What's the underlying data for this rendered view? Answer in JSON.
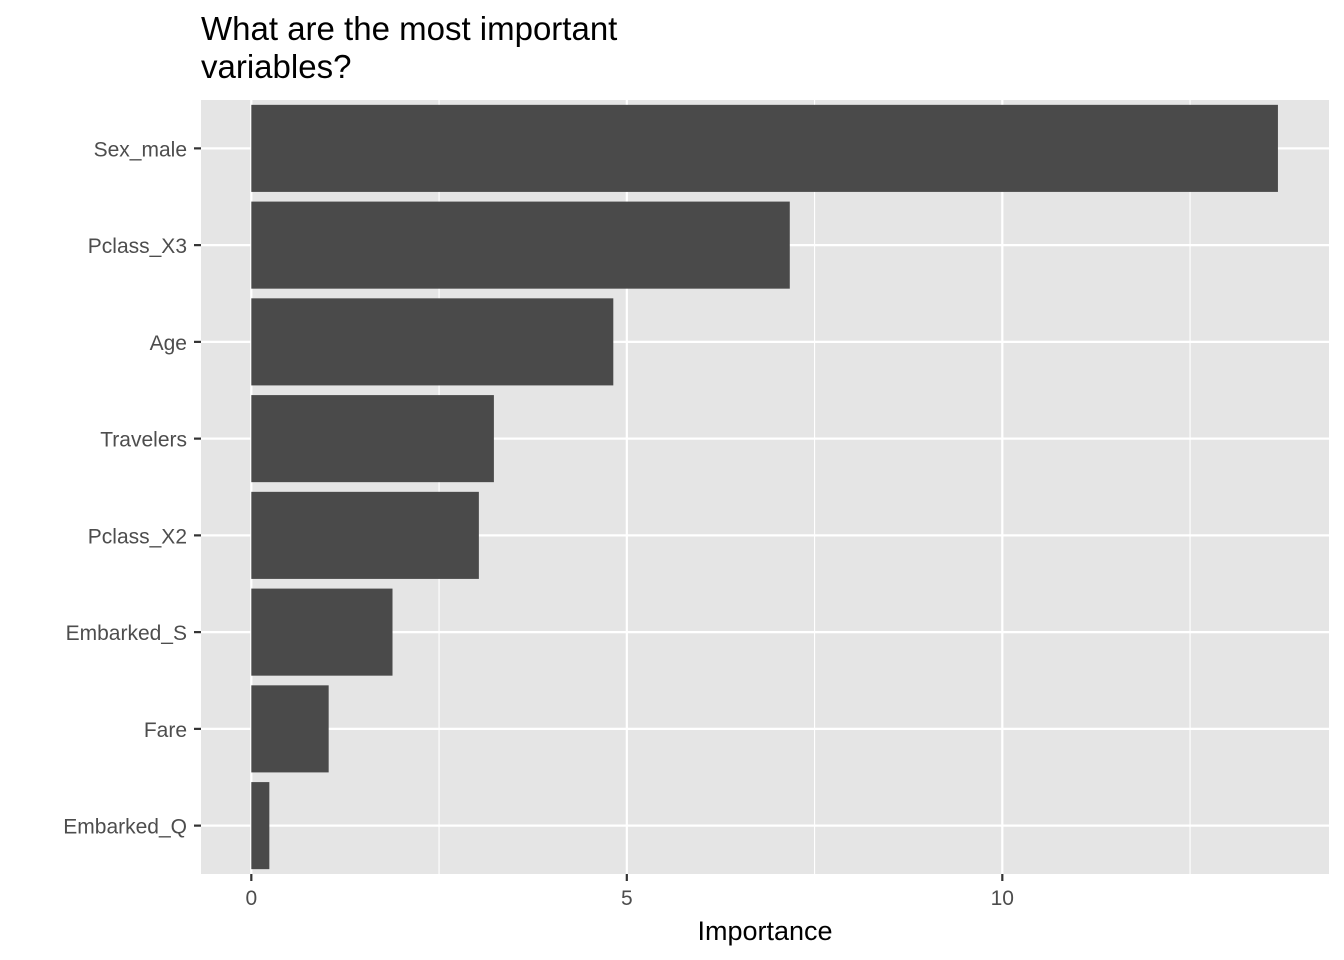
{
  "chart_data": {
    "type": "bar",
    "orientation": "horizontal",
    "title_lines": [
      "What are the most important",
      "variables?"
    ],
    "xlabel": "Importance",
    "ylabel": "",
    "categories": [
      "Sex_male",
      "Pclass_X3",
      "Age",
      "Travelers",
      "Pclass_X2",
      "Embarked_S",
      "Fare",
      "Embarked_Q"
    ],
    "values": [
      13.67,
      7.17,
      4.82,
      3.23,
      3.03,
      1.88,
      1.03,
      0.24
    ],
    "xlim": [
      -0.67,
      14.35
    ],
    "xticks": [
      0,
      5,
      10
    ],
    "xtick_labels": [
      "0",
      "5",
      "10"
    ],
    "grid": true,
    "legend": "none",
    "colors": {
      "bar": "#4a4a4a",
      "panel": "#e5e5e5",
      "grid": "#ffffff",
      "tick_text": "#4d4d4d",
      "axis_title": "#000000"
    }
  }
}
